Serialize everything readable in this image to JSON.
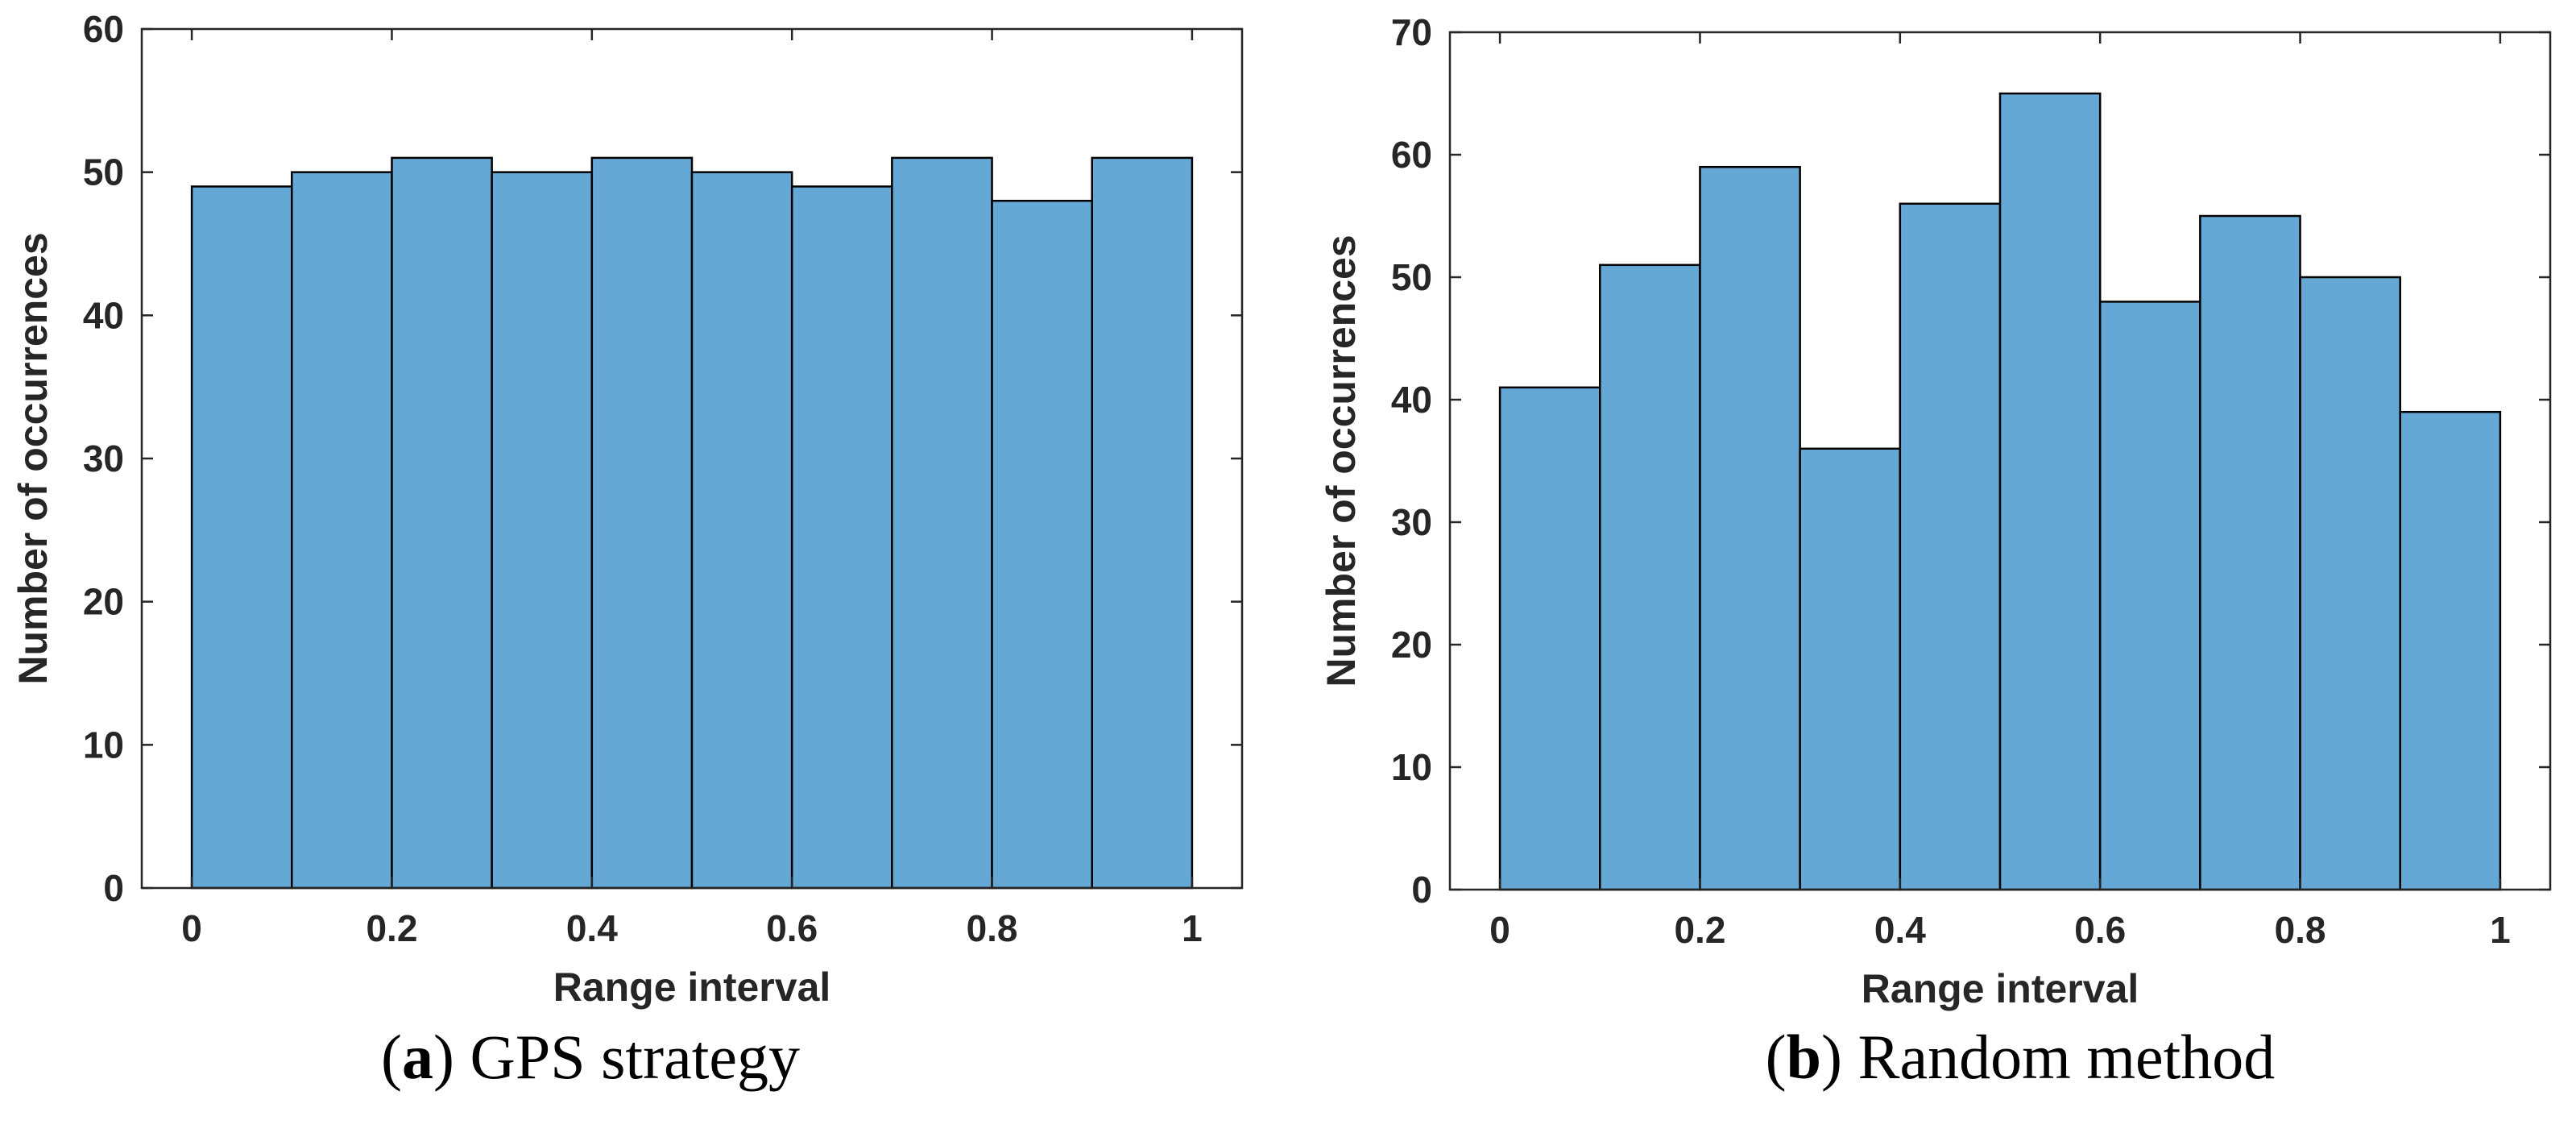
{
  "chart_data": [
    {
      "type": "bar",
      "title": "",
      "caption_letter": "a",
      "caption_text": "GPS strategy",
      "xlabel": "Range interval",
      "ylabel": "Number of occurrences",
      "bin_edges": [
        0,
        0.1,
        0.2,
        0.3,
        0.4,
        0.5,
        0.6,
        0.7,
        0.8,
        0.9,
        1.0
      ],
      "values": [
        49,
        50,
        51,
        50,
        51,
        50,
        49,
        51,
        48,
        51
      ],
      "xlim": [
        -0.05,
        1.05
      ],
      "ylim": [
        0,
        60
      ],
      "xticks": [
        0,
        0.2,
        0.4,
        0.6,
        0.8,
        1
      ],
      "xtick_labels": [
        "0",
        "0.2",
        "0.4",
        "0.6",
        "0.8",
        "1"
      ],
      "yticks": [
        0,
        10,
        20,
        30,
        40,
        50,
        60
      ],
      "ytick_labels": [
        "0",
        "10",
        "20",
        "30",
        "40",
        "50",
        "60"
      ],
      "bar_color": "#65A8D6",
      "edge_color": "#000000",
      "grid": false
    },
    {
      "type": "bar",
      "title": "",
      "caption_letter": "b",
      "caption_text": "Random method",
      "xlabel": "Range interval",
      "ylabel": "Number of occurrences",
      "bin_edges": [
        0,
        0.1,
        0.2,
        0.3,
        0.4,
        0.5,
        0.6,
        0.7,
        0.8,
        0.9,
        1.0
      ],
      "values": [
        41,
        51,
        59,
        36,
        56,
        65,
        48,
        55,
        50,
        39
      ],
      "xlim": [
        -0.05,
        1.05
      ],
      "ylim": [
        0,
        70
      ],
      "xticks": [
        0,
        0.2,
        0.4,
        0.6,
        0.8,
        1
      ],
      "xtick_labels": [
        "0",
        "0.2",
        "0.4",
        "0.6",
        "0.8",
        "1"
      ],
      "yticks": [
        0,
        10,
        20,
        30,
        40,
        50,
        60,
        70
      ],
      "ytick_labels": [
        "0",
        "10",
        "20",
        "30",
        "40",
        "50",
        "60",
        "70"
      ],
      "bar_color": "#65A8D6",
      "edge_color": "#000000",
      "grid": false
    }
  ]
}
